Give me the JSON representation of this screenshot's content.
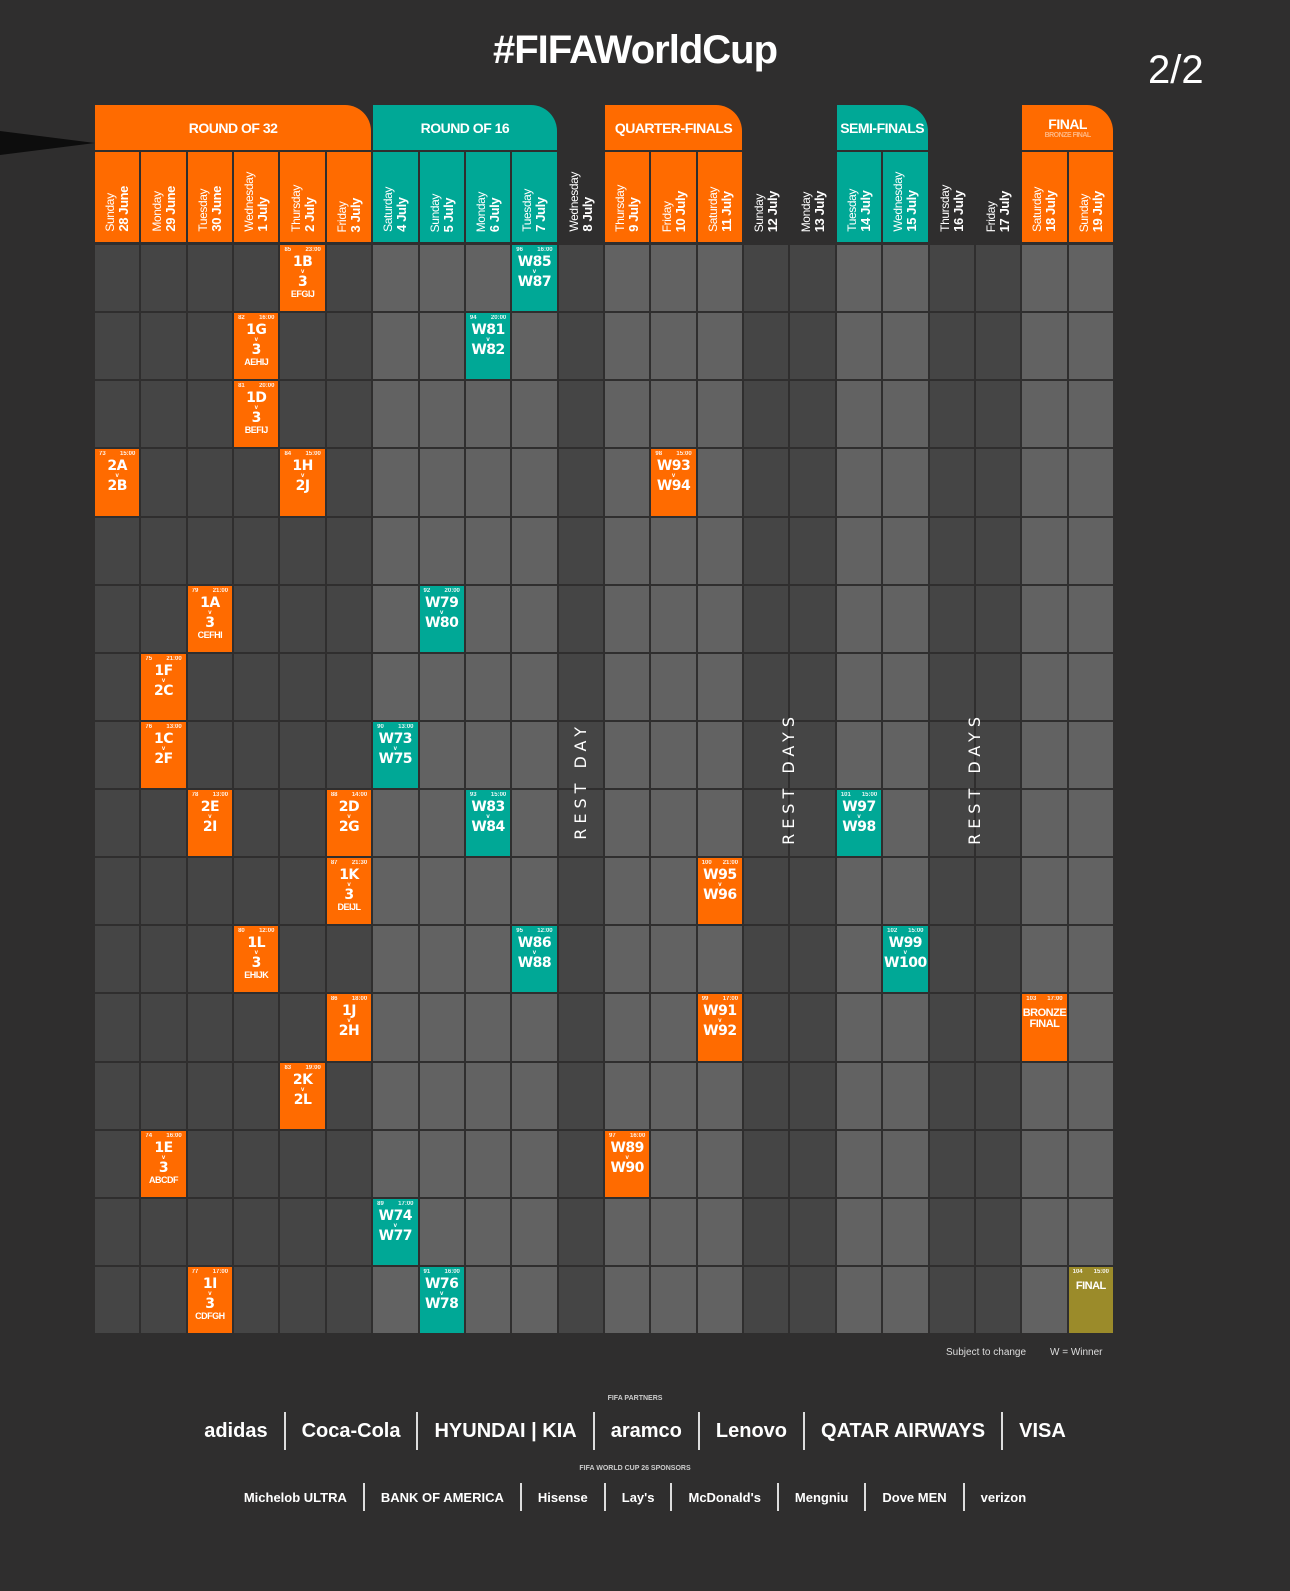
{
  "title": "#FIFAWorldCup",
  "pager": "2/2",
  "colors": {
    "background": "#2f2e2e",
    "orange": "#ff6b00",
    "teal": "#00a896",
    "gold": "#9b8b2a",
    "cell_dark": "#454545",
    "cell_light": "#626262"
  },
  "stages": [
    {
      "label": "ROUND OF 32",
      "color": "orange",
      "first_day": 0,
      "last_day": 5
    },
    {
      "label": "ROUND OF 16",
      "color": "teal",
      "first_day": 6,
      "last_day": 9
    },
    {
      "label": "QUARTER-FINALS",
      "color": "orange",
      "first_day": 11,
      "last_day": 13
    },
    {
      "label": "SEMI-FINALS",
      "color": "teal",
      "first_day": 16,
      "last_day": 17
    },
    {
      "label": "FINAL",
      "sub": "BRONZE FINAL",
      "color": "orange",
      "first_day": 20,
      "last_day": 21
    }
  ],
  "days": [
    {
      "weekday": "Sunday",
      "date": "28 June",
      "stage": "orange"
    },
    {
      "weekday": "Monday",
      "date": "29 June",
      "stage": "orange"
    },
    {
      "weekday": "Tuesday",
      "date": "30 June",
      "stage": "orange"
    },
    {
      "weekday": "Wednesday",
      "date": "1 July",
      "stage": "orange"
    },
    {
      "weekday": "Thursday",
      "date": "2 July",
      "stage": "orange"
    },
    {
      "weekday": "Friday",
      "date": "3 July",
      "stage": "orange"
    },
    {
      "weekday": "Saturday",
      "date": "4 July",
      "stage": "teal"
    },
    {
      "weekday": "Sunday",
      "date": "5 July",
      "stage": "teal"
    },
    {
      "weekday": "Monday",
      "date": "6 July",
      "stage": "teal"
    },
    {
      "weekday": "Tuesday",
      "date": "7 July",
      "stage": "teal"
    },
    {
      "weekday": "Wednesday",
      "date": "8 July",
      "stage": "rest"
    },
    {
      "weekday": "Thursday",
      "date": "9 July",
      "stage": "orange"
    },
    {
      "weekday": "Friday",
      "date": "10 July",
      "stage": "orange"
    },
    {
      "weekday": "Saturday",
      "date": "11 July",
      "stage": "orange"
    },
    {
      "weekday": "Sunday",
      "date": "12 July",
      "stage": "rest"
    },
    {
      "weekday": "Monday",
      "date": "13 July",
      "stage": "rest"
    },
    {
      "weekday": "Tuesday",
      "date": "14 July",
      "stage": "teal"
    },
    {
      "weekday": "Wednesday",
      "date": "15 July",
      "stage": "teal"
    },
    {
      "weekday": "Thursday",
      "date": "16 July",
      "stage": "rest"
    },
    {
      "weekday": "Friday",
      "date": "17 July",
      "stage": "rest"
    },
    {
      "weekday": "Saturday",
      "date": "18 July",
      "stage": "orange"
    },
    {
      "weekday": "Sunday",
      "date": "19 July",
      "stage": "orange"
    }
  ],
  "rest_labels": [
    {
      "text": "REST DAY",
      "days": [
        10
      ]
    },
    {
      "text": "REST DAYS",
      "days": [
        14,
        15
      ]
    },
    {
      "text": "REST DAYS",
      "days": [
        18,
        19
      ]
    }
  ],
  "rows": [
    [
      {
        "day": 4,
        "no": "85",
        "time": "23:00",
        "a": "1B",
        "b": "3",
        "groups": "EFGIJ",
        "color": "orange"
      },
      {
        "day": 9,
        "no": "96",
        "time": "16:00",
        "a": "W85",
        "b": "W87",
        "color": "teal"
      }
    ],
    [
      {
        "day": 3,
        "no": "82",
        "time": "16:00",
        "a": "1G",
        "b": "3",
        "groups": "AEHIJ",
        "color": "orange"
      },
      {
        "day": 8,
        "no": "94",
        "time": "20:00",
        "a": "W81",
        "b": "W82",
        "color": "teal"
      }
    ],
    [
      {
        "day": 3,
        "no": "81",
        "time": "20:00",
        "a": "1D",
        "b": "3",
        "groups": "BEFIJ",
        "color": "orange"
      }
    ],
    [
      {
        "day": 0,
        "no": "73",
        "time": "15:00",
        "a": "2A",
        "b": "2B",
        "color": "orange"
      },
      {
        "day": 4,
        "no": "84",
        "time": "15:00",
        "a": "1H",
        "b": "2J",
        "color": "orange"
      },
      {
        "day": 12,
        "no": "98",
        "time": "15:00",
        "a": "W93",
        "b": "W94",
        "color": "orange"
      }
    ],
    [],
    [
      {
        "day": 2,
        "no": "79",
        "time": "21:00",
        "a": "1A",
        "b": "3",
        "groups": "CEFHI",
        "color": "orange"
      },
      {
        "day": 7,
        "no": "92",
        "time": "20:00",
        "a": "W79",
        "b": "W80",
        "color": "teal"
      }
    ],
    [
      {
        "day": 1,
        "no": "75",
        "time": "21:00",
        "a": "1F",
        "b": "2C",
        "color": "orange"
      }
    ],
    [
      {
        "day": 1,
        "no": "76",
        "time": "13:00",
        "a": "1C",
        "b": "2F",
        "color": "orange"
      },
      {
        "day": 6,
        "no": "90",
        "time": "13:00",
        "a": "W73",
        "b": "W75",
        "color": "teal"
      }
    ],
    [
      {
        "day": 2,
        "no": "78",
        "time": "13:00",
        "a": "2E",
        "b": "2I",
        "color": "orange"
      },
      {
        "day": 5,
        "no": "88",
        "time": "14:00",
        "a": "2D",
        "b": "2G",
        "color": "orange"
      },
      {
        "day": 8,
        "no": "93",
        "time": "15:00",
        "a": "W83",
        "b": "W84",
        "color": "teal"
      },
      {
        "day": 16,
        "no": "101",
        "time": "15:00",
        "a": "W97",
        "b": "W98",
        "color": "teal"
      }
    ],
    [
      {
        "day": 5,
        "no": "87",
        "time": "21:30",
        "a": "1K",
        "b": "3",
        "groups": "DEIJL",
        "color": "orange"
      },
      {
        "day": 13,
        "no": "100",
        "time": "21:00",
        "a": "W95",
        "b": "W96",
        "color": "orange"
      }
    ],
    [
      {
        "day": 3,
        "no": "80",
        "time": "12:00",
        "a": "1L",
        "b": "3",
        "groups": "EHIJK",
        "color": "orange"
      },
      {
        "day": 9,
        "no": "95",
        "time": "12:00",
        "a": "W86",
        "b": "W88",
        "color": "teal"
      },
      {
        "day": 17,
        "no": "102",
        "time": "15:00",
        "a": "W99",
        "b": "W100",
        "color": "teal"
      }
    ],
    [
      {
        "day": 5,
        "no": "86",
        "time": "18:00",
        "a": "1J",
        "b": "2H",
        "color": "orange"
      },
      {
        "day": 13,
        "no": "99",
        "time": "17:00",
        "a": "W91",
        "b": "W92",
        "color": "orange"
      },
      {
        "day": 20,
        "no": "103",
        "time": "17:00",
        "label": "BRONZE FINAL",
        "color": "orange"
      }
    ],
    [
      {
        "day": 4,
        "no": "83",
        "time": "19:00",
        "a": "2K",
        "b": "2L",
        "color": "orange"
      }
    ],
    [
      {
        "day": 1,
        "no": "74",
        "time": "16:00",
        "a": "1E",
        "b": "3",
        "groups": "ABCDF",
        "color": "orange"
      },
      {
        "day": 11,
        "no": "97",
        "time": "16:00",
        "a": "W89",
        "b": "W90",
        "color": "orange"
      }
    ],
    [
      {
        "day": 6,
        "no": "89",
        "time": "17:00",
        "a": "W74",
        "b": "W77",
        "color": "teal"
      }
    ],
    [
      {
        "day": 2,
        "no": "77",
        "time": "17:00",
        "a": "1I",
        "b": "3",
        "groups": "CDFGH",
        "color": "orange"
      },
      {
        "day": 7,
        "no": "91",
        "time": "16:00",
        "a": "W76",
        "b": "W78",
        "color": "teal"
      },
      {
        "day": 21,
        "no": "104",
        "time": "15:00",
        "label": "FINAL",
        "color": "gold"
      }
    ]
  ],
  "vs": "v",
  "footer": {
    "note": "Subject to change",
    "legend": "W = Winner"
  },
  "partners": {
    "heading": "FIFA PARTNERS",
    "logos": [
      "adidas",
      "Coca-Cola",
      "HYUNDAI | KIA",
      "aramco",
      "Lenovo",
      "QATAR AIRWAYS",
      "VISA"
    ]
  },
  "sponsors": {
    "heading": "FIFA WORLD CUP 26 SPONSORS",
    "logos": [
      "Michelob ULTRA",
      "BANK OF AMERICA",
      "Hisense",
      "Lay's",
      "McDonald's",
      "Mengniu",
      "Dove MEN",
      "verizon"
    ]
  }
}
